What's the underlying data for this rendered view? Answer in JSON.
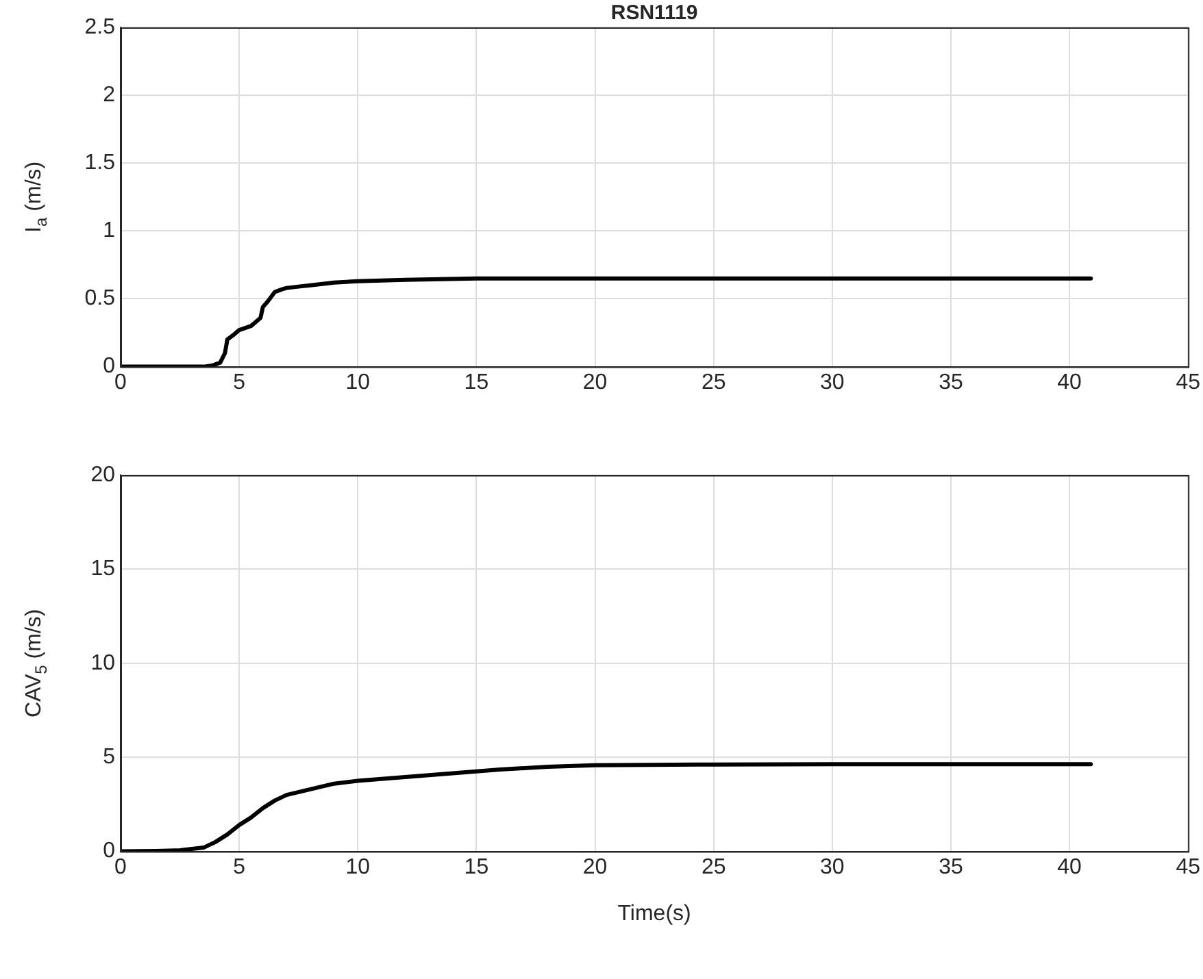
{
  "chart_data": [
    {
      "type": "line",
      "title": "RSN1119",
      "ylabel": "I$_{a}$ (m/s)",
      "xlim": [
        0,
        45
      ],
      "xticks": [
        0,
        5,
        10,
        15,
        20,
        25,
        30,
        35,
        40,
        45
      ],
      "ylim": [
        0,
        2.5
      ],
      "yticks": [
        0,
        0.5,
        1,
        1.5,
        2,
        2.5
      ],
      "grid": true,
      "legend": false,
      "marker": "none",
      "line_style": "solid",
      "series": [
        {
          "color": "#000000",
          "x": [
            0,
            2,
            3.5,
            3.9,
            4.2,
            4.4,
            4.5,
            4.8,
            5.0,
            5.5,
            5.7,
            5.9,
            6.0,
            6.2,
            6.5,
            6.8,
            7.0,
            7.5,
            8,
            9,
            10,
            12,
            15,
            20,
            25,
            30,
            35,
            40.9
          ],
          "values": [
            0,
            0,
            0,
            0.01,
            0.03,
            0.1,
            0.2,
            0.24,
            0.27,
            0.3,
            0.33,
            0.36,
            0.44,
            0.48,
            0.55,
            0.57,
            0.58,
            0.59,
            0.6,
            0.62,
            0.63,
            0.64,
            0.65,
            0.65,
            0.65,
            0.65,
            0.65,
            0.65
          ]
        }
      ]
    },
    {
      "type": "line",
      "xlabel": "Time(s)",
      "ylabel": "CAV$_{5}$ (m/s)",
      "xlim": [
        0,
        45
      ],
      "xticks": [
        0,
        5,
        10,
        15,
        20,
        25,
        30,
        35,
        40,
        45
      ],
      "ylim": [
        0,
        20
      ],
      "yticks": [
        0,
        5,
        10,
        15,
        20
      ],
      "grid": true,
      "legend": false,
      "marker": "none",
      "line_style": "solid",
      "series": [
        {
          "color": "#000000",
          "x": [
            0,
            1.5,
            2.5,
            3.5,
            4.0,
            4.5,
            5.0,
            5.5,
            6.0,
            6.5,
            7.0,
            8,
            9,
            10,
            12,
            14,
            16,
            18,
            20,
            25,
            30,
            35,
            40.9
          ],
          "values": [
            0,
            0.02,
            0.06,
            0.2,
            0.5,
            0.9,
            1.4,
            1.8,
            2.3,
            2.7,
            3.0,
            3.3,
            3.6,
            3.75,
            3.95,
            4.15,
            4.35,
            4.5,
            4.58,
            4.62,
            4.63,
            4.63,
            4.63
          ]
        }
      ]
    }
  ]
}
